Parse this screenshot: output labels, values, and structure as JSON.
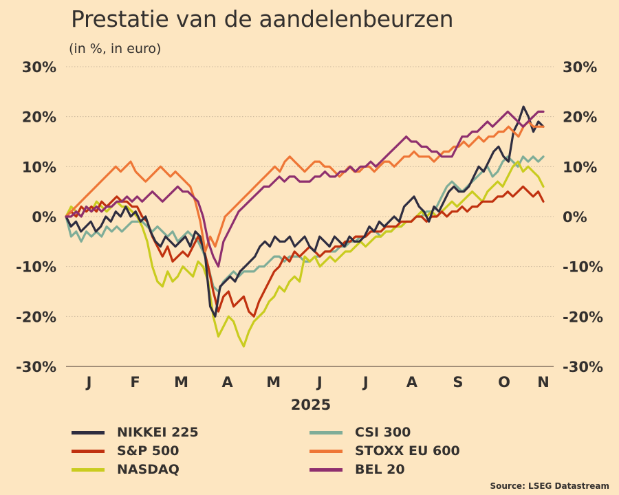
{
  "chart_data": {
    "type": "line",
    "title": "Prestatie van de aandelenbeurzen",
    "subtitle": "(in %, in euro)",
    "xlabel": "2025",
    "ylabel": "",
    "ylim": [
      -30,
      30
    ],
    "yticks": [
      "30%",
      "20%",
      "10%",
      "0%",
      "-10%",
      "-20%",
      "-30%"
    ],
    "ytick_values": [
      30,
      20,
      10,
      0,
      -10,
      -20,
      -30
    ],
    "x_range_months": [
      0,
      10.35
    ],
    "month_labels": [
      "J",
      "F",
      "M",
      "A",
      "M",
      "J",
      "J",
      "A",
      "S",
      "O",
      "N"
    ],
    "month_positions": [
      0.5,
      1.5,
      2.5,
      3.5,
      4.5,
      5.5,
      6.5,
      7.5,
      8.5,
      9.5,
      10.35
    ],
    "grid": "horizontal-dotted",
    "secondary_y_axis": true,
    "legend_position": "bottom",
    "series": [
      {
        "name": "NIKKEI 225",
        "color": "#2e2d40",
        "values": [
          0,
          -2,
          -1,
          -3,
          -2,
          -1,
          -3,
          -2,
          0,
          -1,
          1,
          0,
          2,
          0,
          1,
          -1,
          0,
          -3,
          -5,
          -6,
          -4,
          -5,
          -6,
          -5,
          -4,
          -6,
          -3,
          -4,
          -8,
          -18,
          -20,
          -14,
          -13,
          -12,
          -13,
          -11,
          -10,
          -9,
          -8,
          -6,
          -5,
          -6,
          -4,
          -5,
          -5,
          -4,
          -6,
          -5,
          -4,
          -6,
          -7,
          -4,
          -5,
          -6,
          -4,
          -5,
          -6,
          -4,
          -5,
          -5,
          -4,
          -2,
          -3,
          -1,
          -2,
          -1,
          0,
          -1,
          2,
          3,
          4,
          2,
          1,
          -1,
          2,
          1,
          3,
          5,
          6,
          5,
          5,
          6,
          8,
          10,
          9,
          11,
          13,
          14,
          12,
          11,
          17,
          19,
          22,
          20,
          17,
          19,
          18
        ],
        "endpoint": 18.5
      },
      {
        "name": "S&P 500",
        "color": "#c0310f",
        "values": [
          0,
          1,
          0,
          2,
          1,
          2,
          1,
          3,
          2,
          3,
          4,
          3,
          3,
          2,
          2,
          0,
          -1,
          -4,
          -6,
          -8,
          -6,
          -9,
          -8,
          -7,
          -8,
          -6,
          -4,
          -6,
          -10,
          -15,
          -19,
          -16,
          -15,
          -18,
          -17,
          -16,
          -19,
          -20,
          -17,
          -15,
          -13,
          -11,
          -10,
          -8,
          -9,
          -7,
          -8,
          -7,
          -6,
          -7,
          -8,
          -7,
          -7,
          -6,
          -6,
          -5,
          -5,
          -4,
          -4,
          -4,
          -3,
          -3,
          -3,
          -2,
          -2,
          -2,
          -1,
          -1,
          -1,
          0,
          0,
          -1,
          0,
          0,
          1,
          0,
          1,
          1,
          2,
          1,
          2,
          2,
          3,
          3,
          3,
          4,
          4,
          5,
          4,
          5,
          6,
          5,
          4,
          5,
          3
        ],
        "endpoint": 3
      },
      {
        "name": "NASDAQ",
        "color": "#c9cc1f",
        "values": [
          0,
          2,
          1,
          0,
          2,
          1,
          3,
          2,
          1,
          2,
          3,
          2,
          2,
          1,
          0,
          -2,
          -5,
          -10,
          -13,
          -14,
          -11,
          -13,
          -12,
          -10,
          -11,
          -12,
          -9,
          -10,
          -13,
          -20,
          -24,
          -22,
          -20,
          -21,
          -24,
          -26,
          -23,
          -21,
          -20,
          -19,
          -17,
          -16,
          -14,
          -15,
          -13,
          -12,
          -13,
          -8,
          -9,
          -8,
          -10,
          -9,
          -8,
          -9,
          -8,
          -7,
          -7,
          -6,
          -5,
          -6,
          -5,
          -4,
          -4,
          -3,
          -3,
          -2,
          -2,
          -1,
          -1,
          0,
          1,
          0,
          1,
          0,
          1,
          2,
          3,
          2,
          3,
          4,
          5,
          4,
          3,
          5,
          6,
          7,
          6,
          8,
          10,
          11,
          9,
          10,
          9,
          8,
          6
        ],
        "endpoint": 6
      },
      {
        "name": "CSI 300",
        "color": "#7fad98",
        "values": [
          0,
          -4,
          -3,
          -5,
          -3,
          -4,
          -3,
          -4,
          -2,
          -3,
          -2,
          -3,
          -2,
          -1,
          -1,
          -1,
          -2,
          -3,
          -2,
          -3,
          -4,
          -3,
          -5,
          -4,
          -3,
          -4,
          -5,
          -7,
          -10,
          -14,
          -15,
          -13,
          -12,
          -11,
          -12,
          -11,
          -11,
          -11,
          -10,
          -10,
          -9,
          -8,
          -8,
          -9,
          -8,
          -8,
          -8,
          -9,
          -9,
          -8,
          -8,
          -7,
          -7,
          -7,
          -6,
          -6,
          -5,
          -5,
          -4,
          -4,
          -3,
          -3,
          -4,
          -3,
          -3,
          -2,
          -2,
          -1,
          -1,
          0,
          0,
          1,
          1,
          2,
          4,
          6,
          7,
          6,
          5,
          6,
          7,
          8,
          9,
          10,
          8,
          9,
          11,
          12,
          11,
          10,
          12,
          11,
          12,
          11,
          12
        ],
        "endpoint": 12
      },
      {
        "name": "STOXX EU 600",
        "color": "#ee7636",
        "values": [
          0,
          1,
          2,
          3,
          4,
          5,
          6,
          7,
          8,
          9,
          10,
          9,
          10,
          11,
          9,
          8,
          7,
          8,
          9,
          10,
          9,
          8,
          9,
          8,
          7,
          6,
          3,
          -1,
          -7,
          -4,
          -6,
          -3,
          0,
          1,
          2,
          3,
          4,
          5,
          6,
          7,
          8,
          9,
          10,
          9,
          11,
          12,
          11,
          10,
          9,
          10,
          11,
          11,
          10,
          10,
          9,
          8,
          9,
          10,
          9,
          9,
          10,
          10,
          9,
          10,
          11,
          11,
          10,
          11,
          12,
          12,
          13,
          12,
          12,
          12,
          11,
          12,
          13,
          13,
          14,
          14,
          15,
          14,
          15,
          16,
          15,
          16,
          16,
          17,
          17,
          18,
          17,
          16,
          18,
          19,
          18,
          18,
          18
        ],
        "endpoint": 18
      },
      {
        "name": "BEL 20",
        "color": "#8e2f6e",
        "values": [
          0,
          0,
          1,
          0,
          2,
          1,
          2,
          1,
          2,
          2,
          3,
          3,
          4,
          3,
          4,
          3,
          4,
          5,
          4,
          3,
          4,
          5,
          6,
          5,
          5,
          4,
          3,
          0,
          -5,
          -8,
          -10,
          -5,
          -3,
          -1,
          1,
          2,
          3,
          4,
          5,
          6,
          6,
          7,
          8,
          7,
          8,
          8,
          7,
          7,
          7,
          8,
          8,
          9,
          8,
          8,
          9,
          9,
          10,
          9,
          10,
          10,
          11,
          10,
          11,
          12,
          13,
          14,
          15,
          16,
          15,
          15,
          14,
          14,
          13,
          13,
          12,
          12,
          12,
          14,
          16,
          16,
          17,
          17,
          18,
          19,
          18,
          19,
          20,
          21,
          20,
          19,
          18,
          19,
          20,
          21,
          21
        ],
        "endpoint": 20.5
      }
    ]
  },
  "source": "Source: LSEG Datastream"
}
